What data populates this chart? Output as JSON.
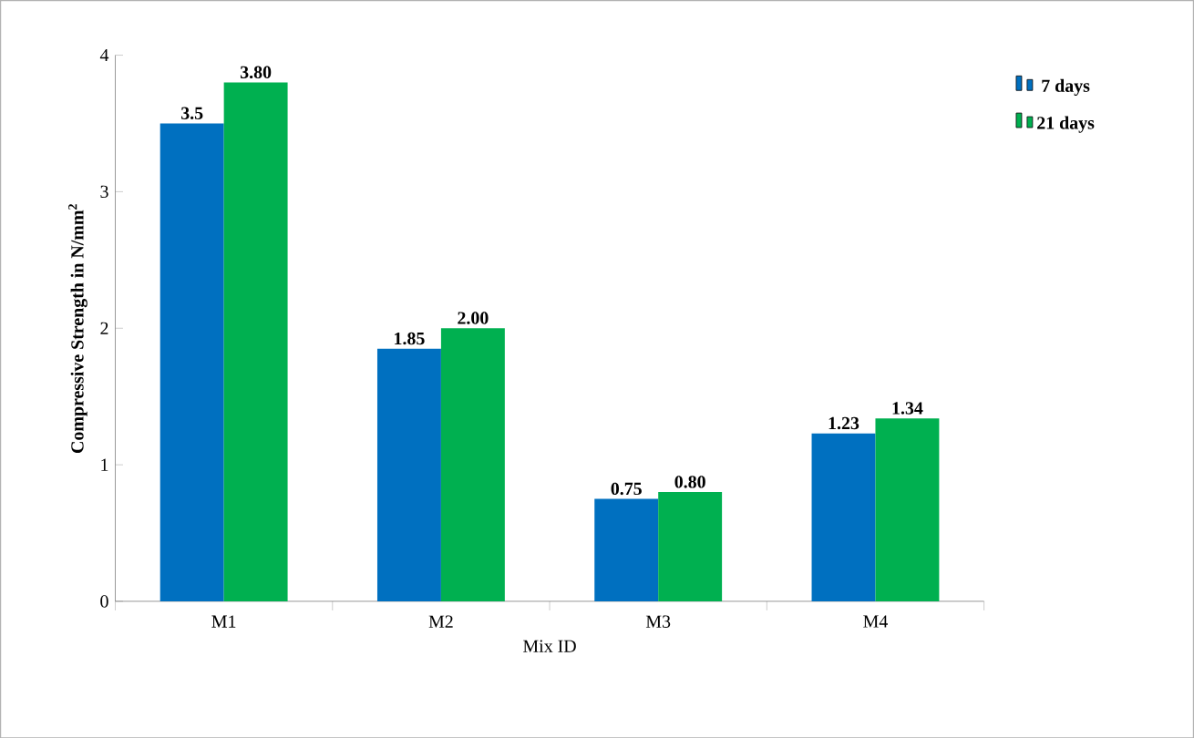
{
  "chart_data": {
    "type": "bar",
    "xlabel": "Mix ID",
    "ylabel": "Compressive Strength in N/mm$^{2}$",
    "categories": [
      "M1",
      "M2",
      "M3",
      "M4"
    ],
    "series": [
      {
        "name": "7 days",
        "color": "#0070c0",
        "values": [
          3.5,
          1.85,
          0.75,
          1.23
        ],
        "value_labels": [
          "3.5",
          "1.85",
          "0.75",
          "1.23"
        ]
      },
      {
        "name": "21 days",
        "color": "#00b050",
        "values": [
          3.8,
          2.0,
          0.8,
          1.34
        ],
        "value_labels": [
          "3.80",
          "2.00",
          "0.80",
          "1.34"
        ]
      }
    ],
    "ylim": [
      0,
      4
    ],
    "yticks": [
      0,
      1,
      2,
      3,
      4
    ],
    "grid": false,
    "legend": "top right"
  }
}
